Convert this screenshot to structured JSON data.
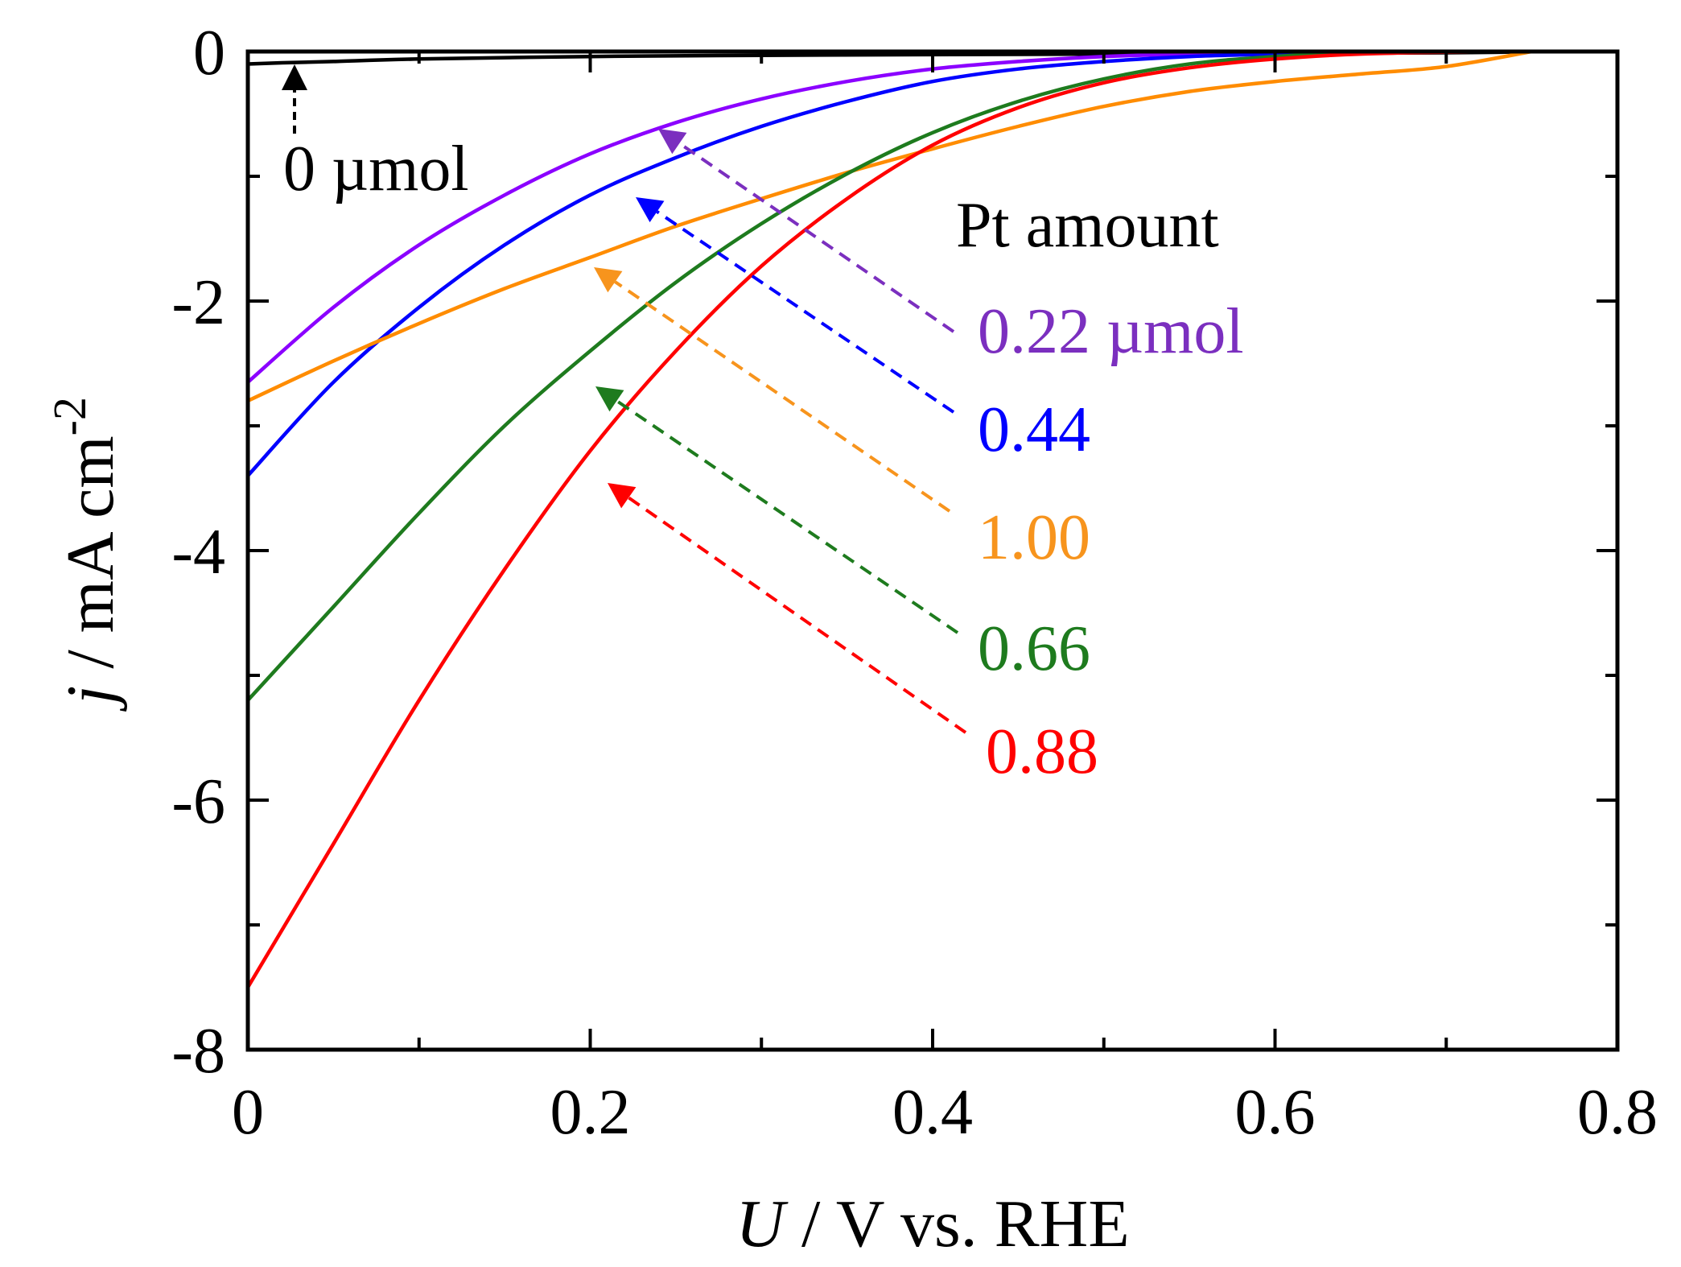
{
  "chart_data": {
    "type": "line",
    "title": "",
    "xlabel": {
      "italic": "U",
      "rest": " / V vs. RHE"
    },
    "ylabel": {
      "italic": "j",
      "rest": " / mA cm",
      "sup": "-2"
    },
    "xlim": [
      0,
      0.8
    ],
    "ylim": [
      -8,
      0
    ],
    "xticks": [
      0,
      0.2,
      0.4,
      0.6,
      0.8
    ],
    "xtick_labels": [
      "0",
      "0.2",
      "0.4",
      "0.6",
      "0.8"
    ],
    "xminor": [
      0.1,
      0.3,
      0.5,
      0.7
    ],
    "yticks": [
      0,
      -2,
      -4,
      -6,
      -8
    ],
    "ytick_labels": [
      "0",
      "-2",
      "-4",
      "-6",
      "-8"
    ],
    "yminor": [
      -1,
      -3,
      -5,
      -7
    ],
    "legend_title": "Pt amount",
    "series": [
      {
        "name": "0 µmol",
        "label": "0 µmol",
        "color": "#000000",
        "x": [
          0,
          0.02,
          0.05,
          0.1,
          0.2,
          0.3,
          0.5,
          0.7,
          0.75
        ],
        "y": [
          -0.1,
          -0.09,
          -0.08,
          -0.06,
          -0.04,
          -0.03,
          -0.02,
          -0.01,
          0
        ]
      },
      {
        "name": "0.22 µmol",
        "label": "0.22 µmol",
        "color": "#8B00FF",
        "label_color": "#7B2FBF",
        "x": [
          0,
          0.05,
          0.1,
          0.15,
          0.2,
          0.25,
          0.3,
          0.35,
          0.4,
          0.45,
          0.5,
          0.55,
          0.6,
          0.63
        ],
        "y": [
          -2.65,
          -2.05,
          -1.55,
          -1.15,
          -0.82,
          -0.57,
          -0.38,
          -0.24,
          -0.14,
          -0.08,
          -0.04,
          -0.02,
          -0.01,
          0
        ]
      },
      {
        "name": "0.44 µmol",
        "label": "0.44",
        "color": "#0000FF",
        "x": [
          0,
          0.05,
          0.1,
          0.15,
          0.2,
          0.25,
          0.3,
          0.35,
          0.4,
          0.45,
          0.5,
          0.55,
          0.6,
          0.65
        ],
        "y": [
          -3.4,
          -2.65,
          -2.05,
          -1.55,
          -1.15,
          -0.85,
          -0.6,
          -0.4,
          -0.24,
          -0.14,
          -0.08,
          -0.04,
          -0.02,
          0
        ]
      },
      {
        "name": "1.00 µmol",
        "label": "1.00",
        "color": "#FF8C00",
        "label_color": "#F7941D",
        "x": [
          0,
          0.05,
          0.1,
          0.15,
          0.2,
          0.25,
          0.3,
          0.35,
          0.4,
          0.45,
          0.5,
          0.55,
          0.6,
          0.65,
          0.7,
          0.75
        ],
        "y": [
          -2.8,
          -2.48,
          -2.18,
          -1.9,
          -1.65,
          -1.4,
          -1.18,
          -0.97,
          -0.78,
          -0.6,
          -0.44,
          -0.32,
          -0.24,
          -0.18,
          -0.12,
          0
        ]
      },
      {
        "name": "0.66 µmol",
        "label": "0.66",
        "color": "#1E7B1E",
        "x": [
          0,
          0.05,
          0.1,
          0.15,
          0.2,
          0.25,
          0.3,
          0.35,
          0.4,
          0.45,
          0.5,
          0.55,
          0.6,
          0.66
        ],
        "y": [
          -5.2,
          -4.45,
          -3.7,
          -3.0,
          -2.4,
          -1.85,
          -1.38,
          -0.98,
          -0.65,
          -0.4,
          -0.22,
          -0.1,
          -0.04,
          0
        ]
      },
      {
        "name": "0.88 µmol",
        "label": "0.88",
        "color": "#FF0000",
        "x": [
          0,
          0.05,
          0.1,
          0.15,
          0.2,
          0.25,
          0.3,
          0.35,
          0.4,
          0.45,
          0.5,
          0.55,
          0.6,
          0.65,
          0.72
        ],
        "y": [
          -7.5,
          -6.35,
          -5.2,
          -4.15,
          -3.2,
          -2.4,
          -1.72,
          -1.18,
          -0.75,
          -0.45,
          -0.25,
          -0.13,
          -0.06,
          -0.02,
          0
        ]
      }
    ]
  }
}
